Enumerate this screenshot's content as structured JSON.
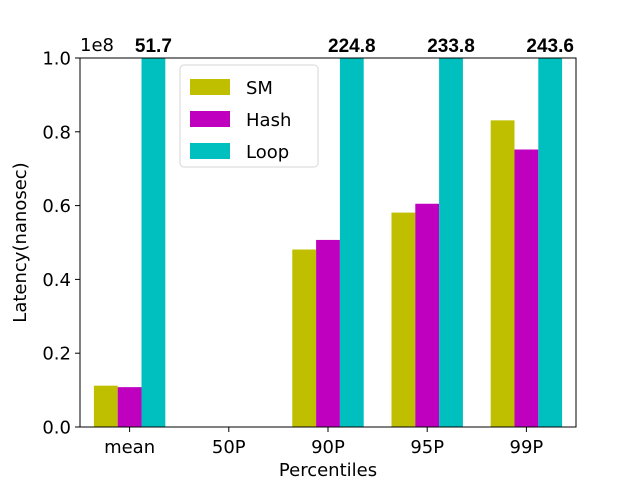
{
  "chart_data": {
    "type": "bar",
    "categories": [
      "mean",
      "50P",
      "90P",
      "95P",
      "99P"
    ],
    "series": [
      {
        "name": "SM",
        "color": "#bfbf00",
        "values": [
          0.112,
          0,
          0.481,
          0.581,
          0.831
        ]
      },
      {
        "name": "Hash",
        "color": "#bf00bf",
        "values": [
          0.108,
          0,
          0.507,
          0.605,
          0.752
        ]
      },
      {
        "name": "Loop",
        "color": "#00bfbf",
        "values": [
          1.0,
          0,
          1.0,
          1.0,
          1.0
        ]
      }
    ],
    "value_scale": "1e8",
    "xlabel": "Percentiles",
    "ylabel": "Latency(nanosec)",
    "ylim": [
      0.0,
      1.0
    ],
    "yticks": [
      "0.0",
      "0.2",
      "0.4",
      "0.6",
      "0.8",
      "1.0"
    ],
    "annotations": [
      {
        "category": "mean",
        "text": "51.7"
      },
      {
        "category": "90P",
        "text": "224.8"
      },
      {
        "category": "95P",
        "text": "233.8"
      },
      {
        "category": "99P",
        "text": "243.6"
      }
    ],
    "legend_position": "top-left",
    "grid": false
  }
}
